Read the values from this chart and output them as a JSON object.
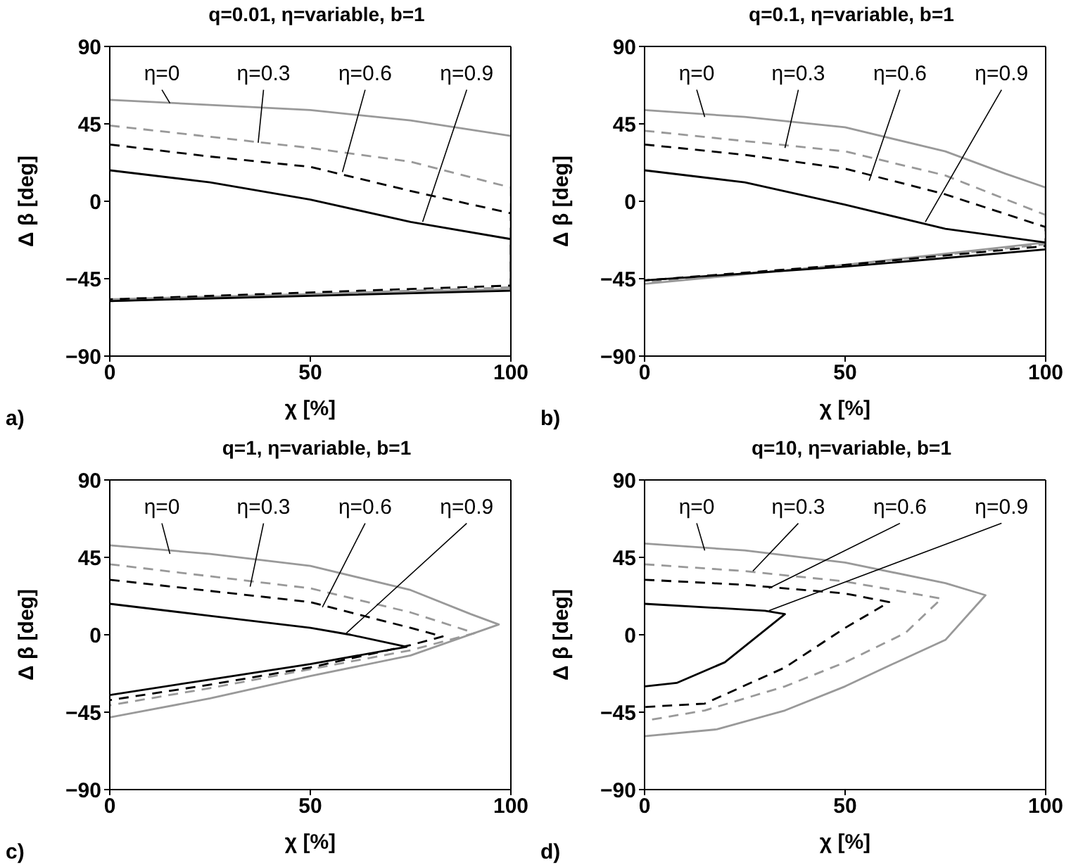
{
  "chart_data": [
    {
      "type": "line",
      "title": "q=0.01, η=variable, b=1",
      "xlabel": "χ [%]",
      "ylabel": "Δ β [deg]",
      "xlim": [
        0,
        100
      ],
      "ylim": [
        -90,
        90
      ],
      "xticks": [
        0,
        50,
        100
      ],
      "yticks": [
        -90,
        -45,
        0,
        45,
        90
      ],
      "grid": false,
      "legend": false,
      "series": [
        {
          "color": "#999999",
          "line_style": "solid",
          "x": [
            0,
            25,
            50,
            75,
            100,
            100,
            50,
            0
          ],
          "values": [
            59,
            56,
            53,
            47,
            38,
            -51,
            -54,
            -58
          ]
        },
        {
          "color": "#999999",
          "line_style": "dashed",
          "x": [
            0,
            50,
            75,
            100,
            100,
            50,
            0
          ],
          "values": [
            44,
            31,
            23,
            8,
            -50,
            -54,
            -57
          ]
        },
        {
          "color": "#000000",
          "line_style": "dashed",
          "x": [
            0,
            25,
            50,
            75,
            100,
            100,
            50,
            0
          ],
          "values": [
            33,
            26,
            20,
            6,
            -7,
            -49,
            -53,
            -57
          ]
        },
        {
          "color": "#000000",
          "line_style": "solid",
          "x": [
            0,
            25,
            50,
            75,
            100,
            100,
            50,
            0
          ],
          "values": [
            18,
            11,
            1,
            -12,
            -22,
            -52,
            -55,
            -58
          ]
        }
      ],
      "annotations": [
        {
          "text": "η=0",
          "x": 15,
          "y": 57
        },
        {
          "text": "η=0.3",
          "x": 37,
          "y": 34
        },
        {
          "text": "η=0.6",
          "x": 58,
          "y": 17
        },
        {
          "text": "η=0.9",
          "x": 78,
          "y": -12
        },
        "a)"
      ]
    },
    {
      "type": "line",
      "title": "q=0.1, η=variable, b=1",
      "xlabel": "χ [%]",
      "ylabel": "Δ β [deg]",
      "xlim": [
        0,
        100
      ],
      "ylim": [
        -90,
        90
      ],
      "xticks": [
        0,
        50,
        100
      ],
      "yticks": [
        -90,
        -45,
        0,
        45,
        90
      ],
      "grid": false,
      "legend": false,
      "series": [
        {
          "color": "#999999",
          "line_style": "solid",
          "x": [
            0,
            25,
            50,
            75,
            90,
            100,
            100,
            50,
            0
          ],
          "values": [
            53,
            49,
            43,
            29,
            16,
            8,
            -24,
            -37,
            -48
          ]
        },
        {
          "color": "#999999",
          "line_style": "dashed",
          "x": [
            0,
            50,
            75,
            100,
            100,
            50,
            0
          ],
          "values": [
            41,
            29,
            15,
            -8,
            -25,
            -37,
            -47
          ]
        },
        {
          "color": "#000000",
          "line_style": "dashed",
          "x": [
            0,
            25,
            50,
            75,
            100,
            100,
            50,
            0
          ],
          "values": [
            33,
            27,
            19,
            4,
            -15,
            -26,
            -37,
            -46
          ]
        },
        {
          "color": "#000000",
          "line_style": "solid",
          "x": [
            0,
            25,
            50,
            75,
            100,
            100,
            50,
            0
          ],
          "values": [
            18,
            11,
            -2,
            -16,
            -24,
            -28,
            -38,
            -46
          ]
        }
      ],
      "annotations": [
        {
          "text": "η=0",
          "x": 15,
          "y": 49
        },
        {
          "text": "η=0.3",
          "x": 35,
          "y": 31
        },
        {
          "text": "η=0.6",
          "x": 56,
          "y": 12
        },
        {
          "text": "η=0.9",
          "x": 70,
          "y": -12
        },
        "b)"
      ]
    },
    {
      "type": "line",
      "title": "q=1, η=variable, b=1",
      "xlabel": "χ [%]",
      "ylabel": "Δ β [deg]",
      "xlim": [
        0,
        100
      ],
      "ylim": [
        -90,
        90
      ],
      "xticks": [
        0,
        50,
        100
      ],
      "yticks": [
        -90,
        -45,
        0,
        45,
        90
      ],
      "grid": false,
      "legend": false,
      "series": [
        {
          "color": "#999999",
          "line_style": "solid",
          "x": [
            0,
            25,
            50,
            75,
            90,
            97,
            75,
            50,
            25,
            0
          ],
          "values": [
            52,
            47,
            40,
            26,
            12,
            6,
            -12,
            -24,
            -37,
            -48
          ]
        },
        {
          "color": "#999999",
          "line_style": "dashed",
          "x": [
            0,
            50,
            75,
            91,
            75,
            50,
            25,
            0
          ],
          "values": [
            41,
            27,
            13,
            1,
            -9,
            -20,
            -31,
            -41
          ]
        },
        {
          "color": "#000000",
          "line_style": "dashed",
          "x": [
            0,
            50,
            75,
            83,
            75,
            50,
            25,
            0
          ],
          "values": [
            32,
            19,
            4,
            -1,
            -6,
            -19,
            -29,
            -38
          ]
        },
        {
          "color": "#000000",
          "line_style": "solid",
          "x": [
            0,
            25,
            50,
            60,
            74,
            50,
            25,
            0
          ],
          "values": [
            18,
            11,
            4,
            0,
            -7,
            -17,
            -26,
            -35
          ]
        }
      ],
      "annotations": [
        {
          "text": "η=0",
          "x": 15,
          "y": 47
        },
        {
          "text": "η=0.3",
          "x": 35,
          "y": 28
        },
        {
          "text": "η=0.6",
          "x": 53,
          "y": 16
        },
        {
          "text": "η=0.9",
          "x": 59,
          "y": 1
        },
        "c)"
      ]
    },
    {
      "type": "line",
      "title": "q=10, η=variable, b=1",
      "xlabel": "χ [%]",
      "ylabel": "Δ β [deg]",
      "xlim": [
        0,
        100
      ],
      "ylim": [
        -90,
        90
      ],
      "xticks": [
        0,
        50,
        100
      ],
      "yticks": [
        -90,
        -45,
        0,
        45,
        90
      ],
      "grid": false,
      "legend": false,
      "series": [
        {
          "color": "#999999",
          "line_style": "solid",
          "x": [
            0,
            25,
            50,
            75,
            85,
            75,
            60,
            50,
            35,
            18,
            0
          ],
          "values": [
            53,
            49,
            42,
            30,
            23,
            -3,
            -19,
            -30,
            -44,
            -55,
            -59
          ]
        },
        {
          "color": "#999999",
          "line_style": "dashed",
          "x": [
            0,
            25,
            50,
            74,
            65,
            50,
            35,
            15,
            0
          ],
          "values": [
            41,
            37,
            31,
            21,
            1,
            -16,
            -30,
            -44,
            -50
          ]
        },
        {
          "color": "#000000",
          "line_style": "dashed",
          "x": [
            0,
            25,
            50,
            61,
            50,
            35,
            15,
            0
          ],
          "values": [
            32,
            29,
            24,
            19,
            4,
            -19,
            -40,
            -42
          ]
        },
        {
          "color": "#000000",
          "line_style": "solid",
          "x": [
            0,
            30,
            35,
            20,
            8,
            0
          ],
          "values": [
            18,
            14,
            12,
            -16,
            -28,
            -30
          ]
        }
      ],
      "annotations": [
        {
          "text": "η=0",
          "x": 15,
          "y": 49
        },
        {
          "text": "η=0.3",
          "x": 27,
          "y": 37
        },
        {
          "text": "η=0.6",
          "x": 31,
          "y": 27
        },
        {
          "text": "η=0.9",
          "x": 31,
          "y": 14
        },
        "d)"
      ]
    }
  ]
}
